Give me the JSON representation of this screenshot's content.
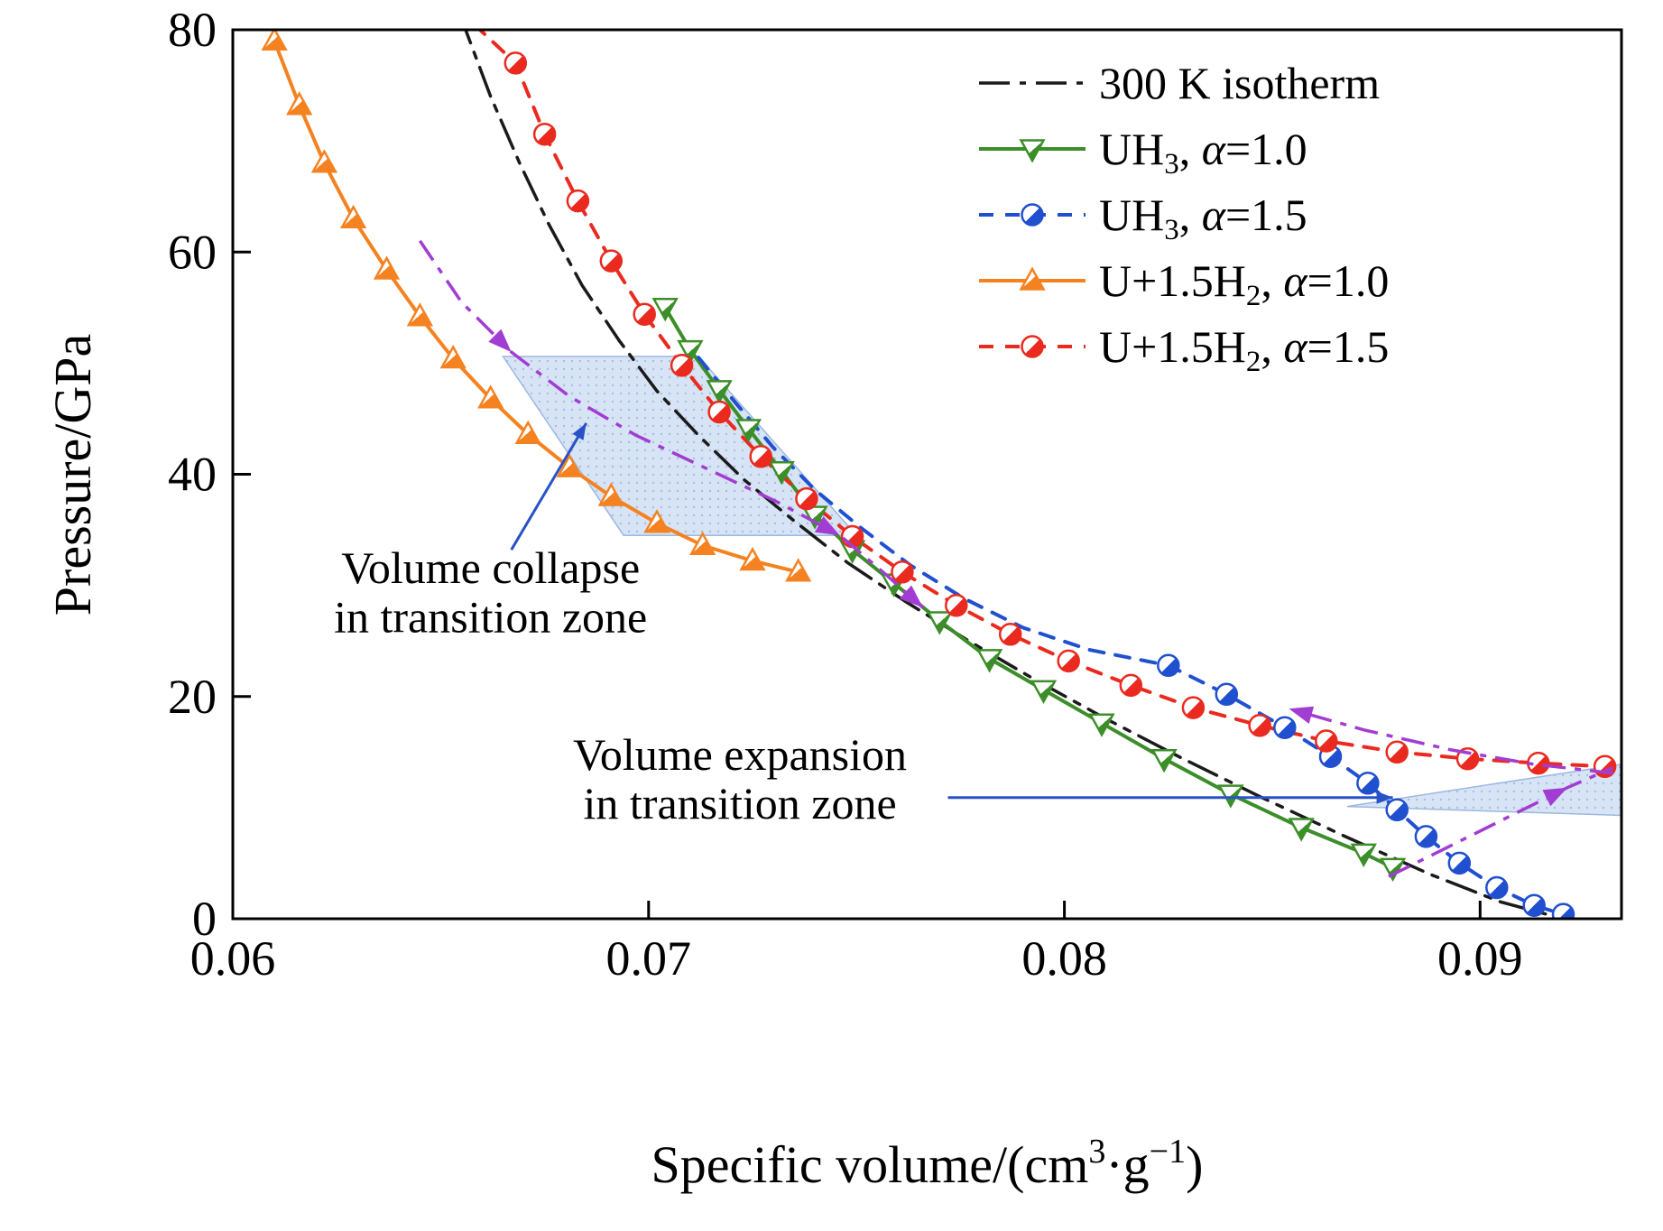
{
  "chart_data": {
    "type": "line",
    "title": "",
    "xlabel": "Specific volume/(cm³·g⁻¹)",
    "xlabel_parts": [
      {
        "t": "Specific volume/(cm"
      },
      {
        "t": "3",
        "sup": true
      },
      {
        "t": "·g"
      },
      {
        "t": "−1",
        "sup": true
      },
      {
        "t": ")"
      }
    ],
    "ylabel": "Pressure/GPa",
    "xlim": [
      0.06,
      0.0934
    ],
    "ylim": [
      0,
      80
    ],
    "xticks": [
      {
        "v": 0.06,
        "label": "0.06"
      },
      {
        "v": 0.07,
        "label": "0.07"
      },
      {
        "v": 0.08,
        "label": "0.08"
      },
      {
        "v": 0.09,
        "label": "0.09"
      }
    ],
    "yticks": [
      {
        "v": 0,
        "label": "0"
      },
      {
        "v": 20,
        "label": "20"
      },
      {
        "v": 40,
        "label": "40"
      },
      {
        "v": 60,
        "label": "60"
      },
      {
        "v": 80,
        "label": "80"
      }
    ],
    "grid": false,
    "legend_position": "top-right",
    "series": [
      {
        "name": "300 K isotherm",
        "label_parts": [
          {
            "t": "300 K isotherm"
          }
        ],
        "color": "#1a1a1a",
        "dash": "dashdot",
        "marker": "none",
        "width": 3.5,
        "points": [
          [
            0.0653,
            81
          ],
          [
            0.0656,
            80
          ],
          [
            0.0662,
            74
          ],
          [
            0.0669,
            68
          ],
          [
            0.0676,
            62.5
          ],
          [
            0.0684,
            57
          ],
          [
            0.0693,
            52
          ],
          [
            0.0702,
            47.5
          ],
          [
            0.0712,
            43.5
          ],
          [
            0.0723,
            39.5
          ],
          [
            0.0735,
            35.8
          ],
          [
            0.0748,
            32
          ],
          [
            0.0762,
            28.5
          ],
          [
            0.0777,
            25
          ],
          [
            0.0793,
            21.5
          ],
          [
            0.081,
            18
          ],
          [
            0.0828,
            14.5
          ],
          [
            0.0847,
            11
          ],
          [
            0.0867,
            7.5
          ],
          [
            0.0888,
            4
          ],
          [
            0.0905,
            1.5
          ],
          [
            0.0918,
            0.2
          ]
        ]
      },
      {
        "name": "UH₃, α=1.0",
        "label_parts": [
          {
            "t": "UH"
          },
          {
            "t": "3",
            "sub": true
          },
          {
            "t": ", "
          },
          {
            "t": "α",
            "it": true
          },
          {
            "t": "=1.0"
          }
        ],
        "color": "#3c8e28",
        "dash": "solid",
        "marker": "triangle-down",
        "width": 4,
        "points": [
          [
            0.0704,
            55
          ],
          [
            0.071,
            51.2
          ],
          [
            0.0717,
            47.6
          ],
          [
            0.0724,
            44.1
          ],
          [
            0.0732,
            40.3
          ],
          [
            0.074,
            36.3
          ],
          [
            0.0749,
            33.2
          ],
          [
            0.0759,
            30.2
          ],
          [
            0.077,
            26.8
          ],
          [
            0.0782,
            23.4
          ],
          [
            0.0795,
            20.6
          ],
          [
            0.0809,
            17.6
          ],
          [
            0.0824,
            14.4
          ],
          [
            0.084,
            11.2
          ],
          [
            0.0857,
            8.2
          ],
          [
            0.0872,
            5.9
          ],
          [
            0.0879,
            4.6
          ]
        ]
      },
      {
        "name": "UH₃, α=1.5",
        "label_parts": [
          {
            "t": "UH"
          },
          {
            "t": "3",
            "sub": true
          },
          {
            "t": ", "
          },
          {
            "t": "α",
            "it": true
          },
          {
            "t": "=1.5"
          }
        ],
        "color": "#2050d0",
        "dash": "dashed",
        "marker": "circle-half",
        "marker_from": 9,
        "width": 4,
        "points": [
          [
            0.0712,
            50.5
          ],
          [
            0.0721,
            46.4
          ],
          [
            0.073,
            42.4
          ],
          [
            0.074,
            38.6
          ],
          [
            0.0751,
            35.2
          ],
          [
            0.0763,
            31.8
          ],
          [
            0.0776,
            28.8
          ],
          [
            0.079,
            26.2
          ],
          [
            0.0806,
            24.2
          ],
          [
            0.0825,
            22.8
          ],
          [
            0.0839,
            20.2
          ],
          [
            0.0853,
            17.2
          ],
          [
            0.0864,
            14.6
          ],
          [
            0.0873,
            12.2
          ],
          [
            0.088,
            9.8
          ],
          [
            0.0887,
            7.4
          ],
          [
            0.0895,
            5
          ],
          [
            0.0904,
            2.8
          ],
          [
            0.0913,
            1.2
          ],
          [
            0.092,
            0.4
          ]
        ]
      },
      {
        "name": "U+1.5H₂, α=1.0",
        "label_parts": [
          {
            "t": "U+1.5H"
          },
          {
            "t": "2",
            "sub": true
          },
          {
            "t": ", "
          },
          {
            "t": "α",
            "it": true
          },
          {
            "t": "=1.0"
          }
        ],
        "color": "#f58220",
        "dash": "solid",
        "marker": "triangle-up",
        "width": 4,
        "points": [
          [
            0.061,
            79
          ],
          [
            0.0616,
            73.2
          ],
          [
            0.0622,
            68
          ],
          [
            0.0629,
            63
          ],
          [
            0.0637,
            58.4
          ],
          [
            0.0645,
            54.2
          ],
          [
            0.0653,
            50.4
          ],
          [
            0.0662,
            46.8
          ],
          [
            0.0671,
            43.6
          ],
          [
            0.0681,
            40.6
          ],
          [
            0.0691,
            38
          ],
          [
            0.0702,
            35.6
          ],
          [
            0.0713,
            33.6
          ],
          [
            0.0725,
            32.2
          ],
          [
            0.0736,
            31.2
          ]
        ]
      },
      {
        "name": "U+1.5H₂, α=1.5",
        "label_parts": [
          {
            "t": "U+1.5H"
          },
          {
            "t": "2",
            "sub": true
          },
          {
            "t": ", "
          },
          {
            "t": "α",
            "it": true
          },
          {
            "t": "=1.5"
          }
        ],
        "color": "#ea2a1f",
        "dash": "dashed",
        "marker": "circle-half",
        "marker_from": 1,
        "width": 4,
        "points": [
          [
            0.0658,
            80.5
          ],
          [
            0.0668,
            77
          ],
          [
            0.0675,
            70.6
          ],
          [
            0.0683,
            64.6
          ],
          [
            0.0691,
            59.2
          ],
          [
            0.0699,
            54.4
          ],
          [
            0.0708,
            49.8
          ],
          [
            0.0717,
            45.6
          ],
          [
            0.0727,
            41.6
          ],
          [
            0.0738,
            37.8
          ],
          [
            0.0749,
            34.4
          ],
          [
            0.0761,
            31.2
          ],
          [
            0.0774,
            28.2
          ],
          [
            0.0787,
            25.6
          ],
          [
            0.0801,
            23.2
          ],
          [
            0.0816,
            21
          ],
          [
            0.0831,
            19
          ],
          [
            0.0847,
            17.4
          ],
          [
            0.0863,
            16
          ],
          [
            0.088,
            15
          ],
          [
            0.0897,
            14.4
          ],
          [
            0.0914,
            14
          ],
          [
            0.093,
            13.7
          ]
        ]
      }
    ],
    "transition_paths": [
      {
        "name": "transition-path-collapse",
        "color": "#a13dd2",
        "points": [
          [
            0.0645,
            61
          ],
          [
            0.0655,
            55.5
          ],
          [
            0.0667,
            51
          ],
          [
            0.0681,
            47
          ],
          [
            0.0697,
            43.5
          ],
          [
            0.0714,
            40.5
          ],
          [
            0.0731,
            37.5
          ],
          [
            0.0746,
            34.5
          ],
          [
            0.0757,
            31
          ],
          [
            0.0766,
            28
          ]
        ],
        "arrows_at": [
          2,
          7,
          9
        ]
      },
      {
        "name": "transition-path-expansion-up",
        "color": "#a13dd2",
        "points": [
          [
            0.0878,
            3.8
          ],
          [
            0.0892,
            6.4
          ],
          [
            0.0907,
            9.2
          ],
          [
            0.0921,
            11.8
          ],
          [
            0.0932,
            13.6
          ]
        ],
        "arrows_at": [
          3
        ]
      },
      {
        "name": "transition-path-expansion-left",
        "color": "#a13dd2",
        "points": [
          [
            0.0932,
            13.1
          ],
          [
            0.0913,
            13.9
          ],
          [
            0.0893,
            15.2
          ],
          [
            0.0872,
            17
          ],
          [
            0.0854,
            18.9
          ]
        ],
        "arrows_at": [
          4
        ]
      }
    ],
    "shaded_regions": [
      {
        "name": "volume-collapse-zone",
        "points": [
          [
            0.0665,
            50.6
          ],
          [
            0.0712,
            50.6
          ],
          [
            0.075,
            34.5
          ],
          [
            0.0694,
            34.5
          ]
        ]
      },
      {
        "name": "volume-expansion-zone",
        "points": [
          [
            0.0868,
            10.1
          ],
          [
            0.0934,
            13.9
          ],
          [
            0.0934,
            9.3
          ]
        ]
      }
    ],
    "region_fill": "#ccdcf2",
    "region_dot": "#90abd8",
    "region_edge": "#9db8e0",
    "annotation_arrow_color": "#2853c6",
    "annotations": [
      {
        "lines": [
          "Volume collapse",
          "in transition zone"
        ],
        "x": 0.0662,
        "y1": 30.2,
        "dy": 4.4,
        "arrow": {
          "from": [
            0.0667,
            33.2
          ],
          "to": [
            0.0685,
            44.6
          ]
        }
      },
      {
        "lines": [
          "Volume expansion",
          "in transition zone"
        ],
        "x": 0.0722,
        "y1": 13.4,
        "dy": 4.4,
        "arrow": {
          "from": [
            0.0772,
            10.9
          ],
          "to": [
            0.0879,
            10.9
          ]
        }
      }
    ]
  }
}
